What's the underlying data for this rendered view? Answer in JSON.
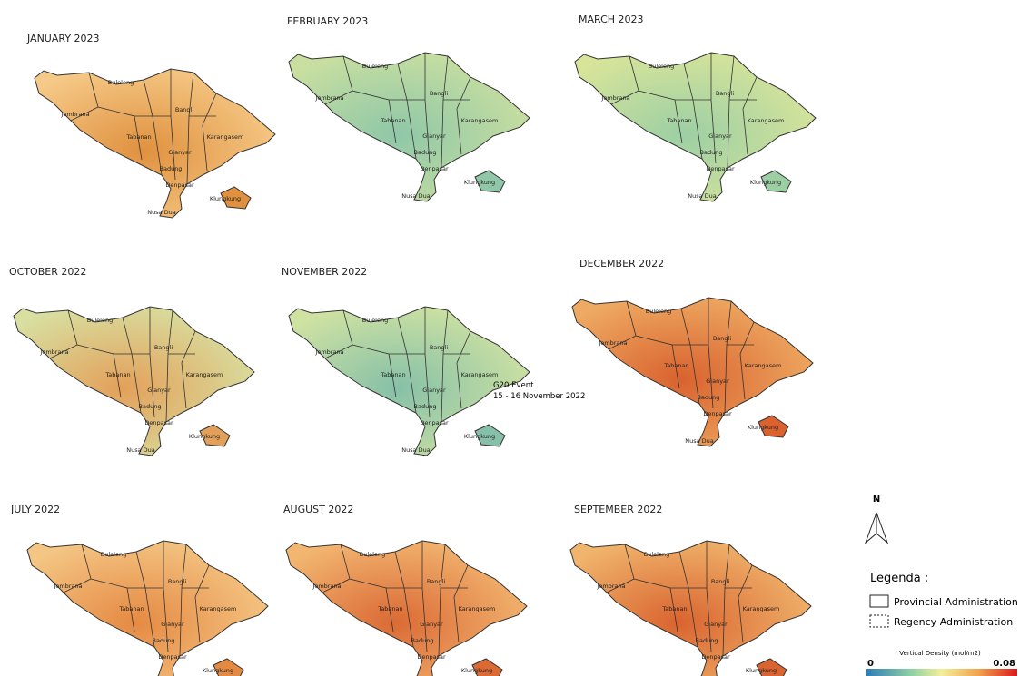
{
  "panels": [
    {
      "title": "JANUARY 2023",
      "colors": [
        "#e0913f",
        "#f5c987"
      ]
    },
    {
      "title": "FEBRUARY 2023",
      "colors": [
        "#8fc7a8",
        "#c9dfa0"
      ]
    },
    {
      "title": "MARCH 2023",
      "colors": [
        "#9ccfa4",
        "#d7e49a"
      ]
    },
    {
      "title": "OCTOBER 2022",
      "colors": [
        "#e3a05a",
        "#d8dfa0"
      ]
    },
    {
      "title": "NOVEMBER 2022",
      "colors": [
        "#86c0a8",
        "#cfe2a2"
      ],
      "annotation": [
        "G20 Event",
        "15 - 16 November 2022"
      ]
    },
    {
      "title": "DECEMBER 2022",
      "colors": [
        "#d9622f",
        "#eeaa62"
      ]
    },
    {
      "title": "JULY 2022",
      "colors": [
        "#e58a43",
        "#f4c684"
      ]
    },
    {
      "title": "AUGUST 2022",
      "colors": [
        "#db6a35",
        "#f2b671"
      ]
    },
    {
      "title": "SEPTEMBER 2022",
      "colors": [
        "#d9642f",
        "#f0b46d"
      ]
    }
  ],
  "regions": [
    "Buleleng",
    "Jembrana",
    "Tabanan",
    "Bangli",
    "Karangasem",
    "Gianyar",
    "Badung",
    "Denpasar",
    "Klungkung",
    "Nusa Dua"
  ],
  "legend": {
    "north": "N",
    "title": "Legenda :",
    "items": [
      "Provincial Administration",
      "Regency Administration"
    ],
    "scale_title": "Vertical Density (mol/m2)",
    "min": 0,
    "max": 0.08
  }
}
